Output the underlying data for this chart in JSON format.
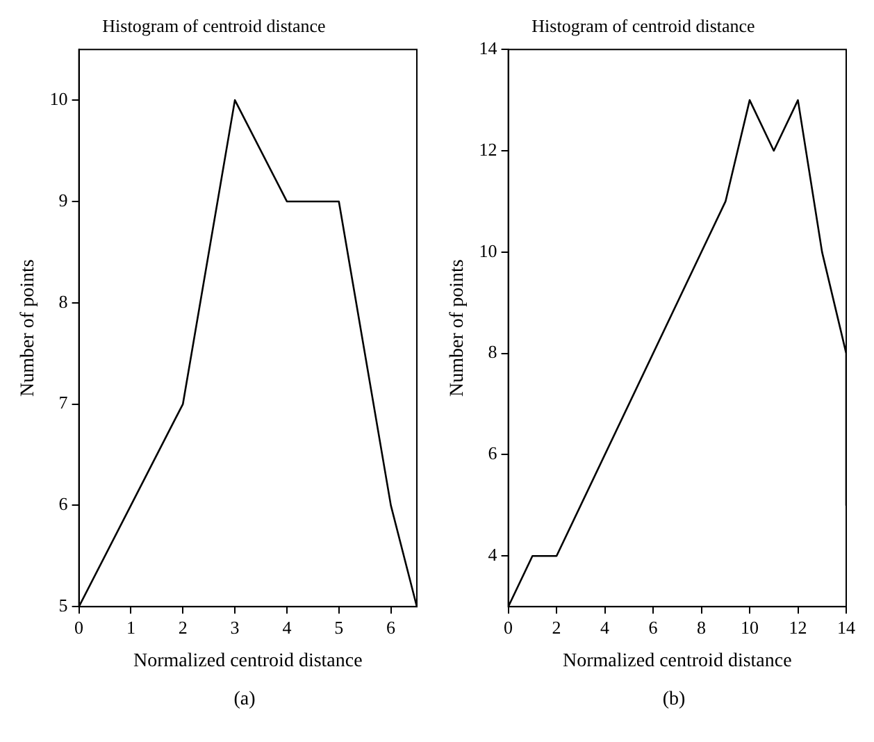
{
  "chart_data": [
    {
      "type": "line",
      "title": "Histogram of centroid distance",
      "xlabel": "Normalized centroid distance",
      "ylabel": "Number of points",
      "x": [
        0,
        1,
        2,
        3,
        4,
        5,
        6,
        6.5
      ],
      "series": [
        {
          "color": "#000000",
          "values": [
            5,
            6,
            7,
            10,
            9,
            9,
            6,
            5
          ]
        }
      ],
      "xlim": [
        0,
        6.5
      ],
      "xticks": [
        0,
        1,
        2,
        3,
        4,
        5,
        6
      ],
      "ylim": [
        5,
        10.5
      ],
      "yticks": [
        5,
        6,
        7,
        8,
        9,
        10
      ],
      "grid": false,
      "legend": false,
      "marker": "none",
      "line_style": "solid",
      "annotations": [
        "(a)"
      ]
    },
    {
      "type": "line",
      "title": "Histogram of centroid distance",
      "xlabel": "Normalized centroid distance",
      "ylabel": "Number of points",
      "x": [
        0,
        1,
        2,
        9,
        10,
        11,
        12,
        13,
        14,
        14
      ],
      "series": [
        {
          "color": "#000000",
          "values": [
            3,
            4,
            4,
            11,
            13,
            12,
            13,
            10,
            8,
            5
          ]
        }
      ],
      "xlim": [
        0,
        14
      ],
      "xticks": [
        0,
        2,
        4,
        6,
        8,
        10,
        12,
        14
      ],
      "ylim": [
        3,
        14
      ],
      "yticks": [
        4,
        6,
        8,
        10,
        12,
        14
      ],
      "grid": false,
      "legend": false,
      "marker": "none",
      "line_style": "solid",
      "annotations": [
        "(b)"
      ]
    }
  ]
}
